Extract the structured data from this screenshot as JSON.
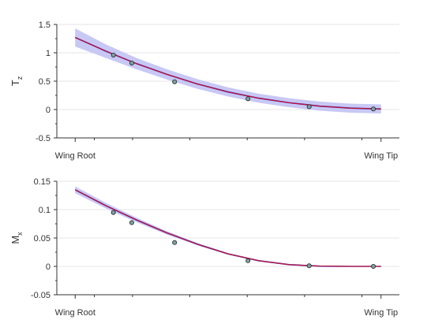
{
  "chart_data": [
    {
      "type": "line",
      "ylabel": "T",
      "ylabel_sub": "z",
      "xlim": [
        0,
        1
      ],
      "ylim": [
        -0.5,
        1.5
      ],
      "yticks": [
        -0.5,
        0,
        0.5,
        1,
        1.5
      ],
      "ytick_labels": [
        "-0.5",
        "0",
        "0.5",
        "1",
        "1.5"
      ],
      "x_tick_labels": [
        {
          "x": 0,
          "label": "Wing Root"
        },
        {
          "x": 1,
          "label": "Wing Tip"
        }
      ],
      "grid": true,
      "colors": {
        "band": "#c8c8f5",
        "truth": "#e01010",
        "mean": "#1a1ad0",
        "marker_fill": "#7ea3a3",
        "marker_edge": "#222222",
        "grid": "#e6e6e6"
      },
      "band_halfwidth": [
        0.16,
        0.12,
        0.1,
        0.09,
        0.085,
        0.08,
        0.08,
        0.08,
        0.08,
        0.08,
        0.08
      ],
      "curve": {
        "x": [
          0,
          0.1,
          0.2,
          0.3,
          0.4,
          0.5,
          0.6,
          0.7,
          0.8,
          0.9,
          1.0
        ],
        "y": [
          1.27,
          1.03,
          0.81,
          0.62,
          0.45,
          0.31,
          0.2,
          0.12,
          0.06,
          0.025,
          0.01
        ]
      },
      "observations": {
        "x": [
          0.125,
          0.185,
          0.325,
          0.565,
          0.765,
          0.975
        ],
        "y": [
          0.96,
          0.82,
          0.49,
          0.19,
          0.05,
          0.01
        ]
      }
    },
    {
      "type": "line",
      "ylabel": "M",
      "ylabel_sub": "x",
      "xlim": [
        0,
        1
      ],
      "ylim": [
        -0.05,
        0.15
      ],
      "yticks": [
        -0.05,
        0,
        0.05,
        0.1,
        0.15
      ],
      "ytick_labels": [
        "-0.05",
        "0",
        "0.05",
        "0.1",
        "0.15"
      ],
      "x_tick_labels": [
        {
          "x": 0,
          "label": "Wing Root"
        },
        {
          "x": 1,
          "label": "Wing Tip"
        }
      ],
      "grid": true,
      "colors": {
        "band": "#c8c8f5",
        "truth": "#e01010",
        "mean": "#1a1ad0",
        "marker_fill": "#7ea3a3",
        "marker_edge": "#222222",
        "grid": "#e6e6e6"
      },
      "band_halfwidth": [
        0.006,
        0.005,
        0.004,
        0.003,
        0.002,
        0.0015,
        0.001,
        0.0008,
        0.0006,
        0.0005,
        0.0005
      ],
      "curve": {
        "x": [
          0,
          0.1,
          0.2,
          0.3,
          0.4,
          0.5,
          0.6,
          0.7,
          0.8,
          0.9,
          1.0
        ],
        "y": [
          0.135,
          0.107,
          0.082,
          0.059,
          0.039,
          0.022,
          0.01,
          0.003,
          0.0005,
          0.0,
          0.0
        ]
      },
      "observations": {
        "x": [
          0.125,
          0.185,
          0.325,
          0.565,
          0.765,
          0.975
        ],
        "y": [
          0.095,
          0.077,
          0.042,
          0.01,
          0.001,
          0.0
        ]
      }
    }
  ]
}
